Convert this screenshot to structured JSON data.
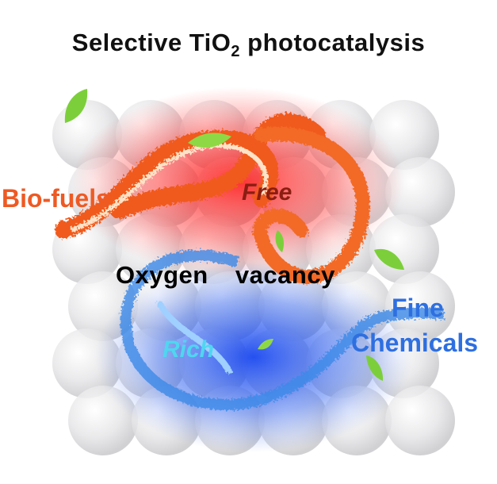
{
  "title": {
    "prefix": "Selective TiO",
    "subscript": "2",
    "suffix": " photocatalysis"
  },
  "labels": {
    "biofuels": "Bio-fuels",
    "free": "Free",
    "oxygen_vacancy": "Oxygen  vacancy",
    "fine": "Fine",
    "chemicals": "Chemicals",
    "rich": "Rich"
  },
  "colors": {
    "fire": "#f05a1e",
    "water": "#2a66e0",
    "red_glow": "#ff2a2a",
    "blue_glow": "#1f4fe8",
    "leaf": "#7ccf3a",
    "sphere": "#e4e4e6"
  }
}
